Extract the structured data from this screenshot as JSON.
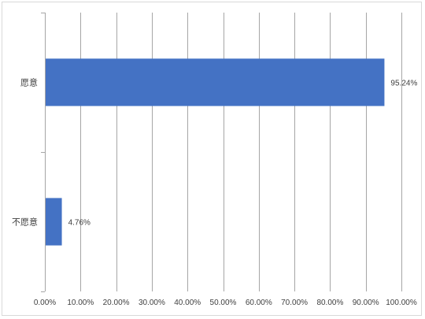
{
  "chart_data": {
    "type": "bar",
    "orientation": "horizontal",
    "title": "",
    "xlabel": "",
    "ylabel": "",
    "categories": [
      "愿意",
      "不愿意"
    ],
    "values": [
      95.24,
      4.76
    ],
    "data_labels": [
      "95.24%",
      "4.76%"
    ],
    "xlim": [
      0,
      100
    ],
    "x_ticks": [
      0,
      10,
      20,
      30,
      40,
      50,
      60,
      70,
      80,
      90,
      100
    ],
    "x_tick_labels": [
      "0.00%",
      "10.00%",
      "20.00%",
      "30.00%",
      "40.00%",
      "50.00%",
      "60.00%",
      "70.00%",
      "80.00%",
      "90.00%",
      "100.00%"
    ],
    "grid": "vertical",
    "legend": "none",
    "colors": {
      "bar": "#4472c4",
      "grid": "#a6a6a6",
      "text": "#404040"
    }
  }
}
